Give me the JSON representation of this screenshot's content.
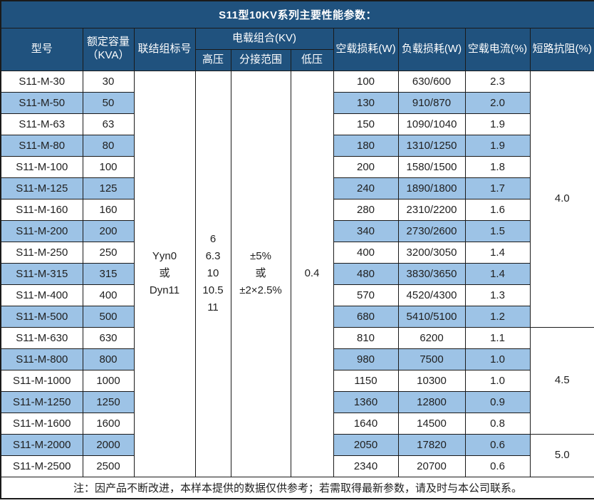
{
  "colors": {
    "header_bg": "#20527e",
    "header_text": "#ffffff",
    "row_alt_bg": "#9dc3e6",
    "border": "#1a1a1a",
    "body_text": "#1f1f1f"
  },
  "title": "S11型10KV系列主要性能参数：",
  "header": {
    "model": "型号",
    "capacity_line1": "额定容量",
    "capacity_line2": "（KVA）",
    "vector_group": "联结组标号",
    "voltage_combo": "电载组合(KV)",
    "hv": "高压",
    "tap_range": "分接范围",
    "lv": "低压",
    "no_load_loss": "空载损耗(W)",
    "load_loss": "负载损耗(W)",
    "no_load_current": "空载电流(%)",
    "impedance": "短路抗阻(%)"
  },
  "merged": {
    "vector_group_lines": [
      "Yyn0",
      "或",
      "Dyn11"
    ],
    "hv_lines": [
      "6",
      "6.3",
      "10",
      "10.5",
      "11"
    ],
    "tap_range_lines": [
      "±5%",
      "或",
      "±2×2.5%"
    ],
    "lv": "0.4"
  },
  "impedance_groups": [
    {
      "value": "4.0",
      "rows": 12
    },
    {
      "value": "4.5",
      "rows": 5
    },
    {
      "value": "5.0",
      "rows": 2
    }
  ],
  "rows": [
    {
      "model": "S11-M-30",
      "capacity": "30",
      "no_load_loss": "100",
      "load_loss": "630/600",
      "no_load_current": "2.3",
      "shaded": false
    },
    {
      "model": "S11-M-50",
      "capacity": "50",
      "no_load_loss": "130",
      "load_loss": "910/870",
      "no_load_current": "2.0",
      "shaded": true
    },
    {
      "model": "S11-M-63",
      "capacity": "63",
      "no_load_loss": "150",
      "load_loss": "1090/1040",
      "no_load_current": "1.9",
      "shaded": false
    },
    {
      "model": "S11-M-80",
      "capacity": "80",
      "no_load_loss": "180",
      "load_loss": "1310/1250",
      "no_load_current": "1.9",
      "shaded": true
    },
    {
      "model": "S11-M-100",
      "capacity": "100",
      "no_load_loss": "200",
      "load_loss": "1580/1500",
      "no_load_current": "1.8",
      "shaded": false
    },
    {
      "model": "S11-M-125",
      "capacity": "125",
      "no_load_loss": "240",
      "load_loss": "1890/1800",
      "no_load_current": "1.7",
      "shaded": true
    },
    {
      "model": "S11-M-160",
      "capacity": "160",
      "no_load_loss": "280",
      "load_loss": "2310/2200",
      "no_load_current": "1.6",
      "shaded": false
    },
    {
      "model": "S11-M-200",
      "capacity": "200",
      "no_load_loss": "340",
      "load_loss": "2730/2600",
      "no_load_current": "1.5",
      "shaded": true
    },
    {
      "model": "S11-M-250",
      "capacity": "250",
      "no_load_loss": "400",
      "load_loss": "3200/3050",
      "no_load_current": "1.4",
      "shaded": false
    },
    {
      "model": "S11-M-315",
      "capacity": "315",
      "no_load_loss": "480",
      "load_loss": "3830/3650",
      "no_load_current": "1.4",
      "shaded": true
    },
    {
      "model": "S11-M-400",
      "capacity": "400",
      "no_load_loss": "570",
      "load_loss": "4520/4300",
      "no_load_current": "1.3",
      "shaded": false
    },
    {
      "model": "S11-M-500",
      "capacity": "500",
      "no_load_loss": "680",
      "load_loss": "5410/5100",
      "no_load_current": "1.2",
      "shaded": true
    },
    {
      "model": "S11-M-630",
      "capacity": "630",
      "no_load_loss": "810",
      "load_loss": "6200",
      "no_load_current": "1.1",
      "shaded": false
    },
    {
      "model": "S11-M-800",
      "capacity": "800",
      "no_load_loss": "980",
      "load_loss": "7500",
      "no_load_current": "1.0",
      "shaded": true
    },
    {
      "model": "S11-M-1000",
      "capacity": "1000",
      "no_load_loss": "1150",
      "load_loss": "10300",
      "no_load_current": "1.0",
      "shaded": false
    },
    {
      "model": "S11-M-1250",
      "capacity": "1250",
      "no_load_loss": "1360",
      "load_loss": "12800",
      "no_load_current": "0.9",
      "shaded": true
    },
    {
      "model": "S11-M-1600",
      "capacity": "1600",
      "no_load_loss": "1640",
      "load_loss": "14500",
      "no_load_current": "0.8",
      "shaded": false
    },
    {
      "model": "S11-M-2000",
      "capacity": "2000",
      "no_load_loss": "2050",
      "load_loss": "17820",
      "no_load_current": "0.6",
      "shaded": true
    },
    {
      "model": "S11-M-2500",
      "capacity": "2500",
      "no_load_loss": "2340",
      "load_loss": "20700",
      "no_load_current": "0.6",
      "shaded": false
    }
  ],
  "footer_note": "注：因产品不断改进，本样本提供的数据仅供参考；若需取得最新参数，请及时与本公司联系。"
}
